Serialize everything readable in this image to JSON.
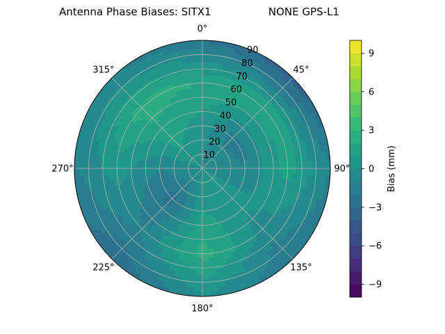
{
  "chart_data": {
    "type": "polar-contour",
    "title_left": "Antenna Phase Biases: SITX1",
    "title_right": "NONE GPS-L1",
    "theta_direction": "clockwise",
    "theta_zero": "top",
    "theta_tick_labels": [
      "0°",
      "45°",
      "90°",
      "135°",
      "180°",
      "225°",
      "270°",
      "315°"
    ],
    "theta_ticks_deg": [
      0,
      45,
      90,
      135,
      180,
      225,
      270,
      315
    ],
    "r_tick_labels": [
      "10",
      "20",
      "30",
      "40",
      "50",
      "60",
      "70",
      "80",
      "90"
    ],
    "r_ticks": [
      10,
      20,
      30,
      40,
      50,
      60,
      70,
      80,
      90
    ],
    "rlim": [
      0,
      90
    ],
    "grid": true,
    "colormap": "viridis",
    "colorbar": {
      "label": "Bias (mm)",
      "range": [
        -10,
        10
      ],
      "levels": 20,
      "tick_values": [
        -9,
        -6,
        -3,
        0,
        3,
        6,
        9
      ],
      "tick_labels": [
        "−9",
        "−6",
        "−3",
        "0",
        "3",
        "6",
        "9"
      ]
    },
    "bias_field_mm": {
      "zenith_deg": [
        0,
        30,
        60,
        90
      ],
      "azimuth_deg": [
        0,
        45,
        90,
        135,
        180,
        225,
        270,
        315
      ],
      "values": [
        [
          0,
          0,
          0,
          0,
          0,
          0,
          0,
          0
        ],
        [
          0.5,
          -1.5,
          -1,
          0.5,
          1,
          -2.5,
          -1,
          1.5
        ],
        [
          2,
          2,
          1.5,
          -0.5,
          2.5,
          -1,
          0.5,
          2.5
        ],
        [
          -2,
          -4,
          -1,
          -2,
          0,
          -3,
          -1,
          -1
        ]
      ]
    }
  }
}
